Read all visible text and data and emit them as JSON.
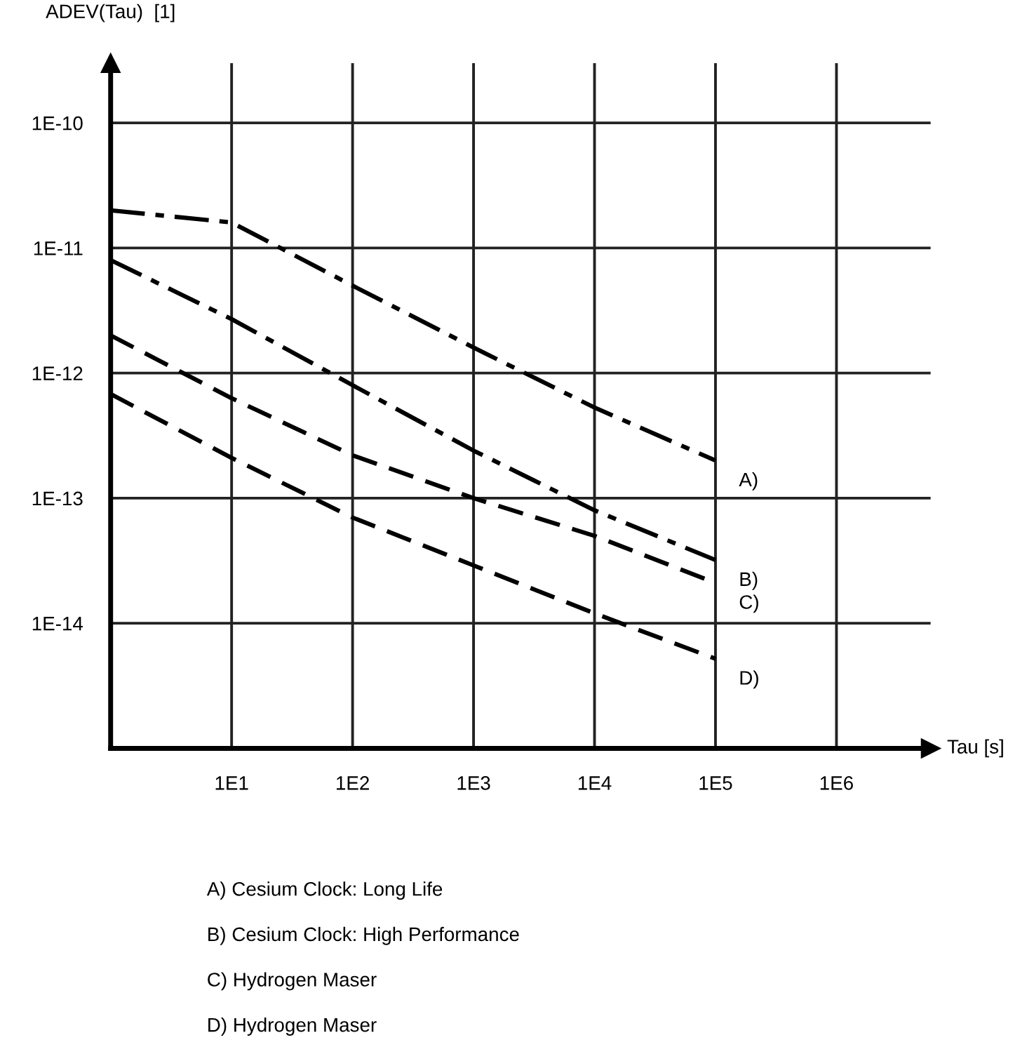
{
  "chart_data": {
    "type": "line",
    "xlabel": "Tau [s]",
    "ylabel": "ADEV(Tau)  [1]",
    "log": "xy",
    "grid": true,
    "legend": "right",
    "marker": "none",
    "xlim": [
      1,
      6000000
    ],
    "xticks": [
      {
        "value": 10,
        "label": "1E1"
      },
      {
        "value": 100,
        "label": "1E2"
      },
      {
        "value": 1000,
        "label": "1E3"
      },
      {
        "value": 10000,
        "label": "1E4"
      },
      {
        "value": 100000,
        "label": "1E5"
      },
      {
        "value": 1000000,
        "label": "1E6"
      }
    ],
    "ylim": [
      1e-15,
      3e-10
    ],
    "yticks": [
      {
        "value": 1e-14,
        "label": "1E-14"
      },
      {
        "value": 1e-13,
        "label": "1E-13"
      },
      {
        "value": 1e-12,
        "label": "1E-12"
      },
      {
        "value": 1e-11,
        "label": "1E-11"
      },
      {
        "value": 1e-10,
        "label": "1E-10"
      }
    ],
    "x": [
      1,
      10,
      100,
      1000,
      10000,
      100000
    ],
    "series": [
      {
        "name": "A)",
        "color": "#000000",
        "line_style": "dashdot",
        "values": [
          2e-11,
          1.6e-11,
          5e-12,
          1.6e-12,
          5.3e-13,
          2e-13
        ]
      },
      {
        "name": "B)",
        "color": "#000000",
        "line_style": "dashdot",
        "values": [
          8e-12,
          2.7e-12,
          8e-13,
          2.4e-13,
          8e-14,
          3.2e-14
        ]
      },
      {
        "name": "C)",
        "color": "#000000",
        "line_style": "dashed",
        "values": [
          2e-12,
          6.3e-13,
          2.2e-13,
          1e-13,
          5e-14,
          2.1e-14
        ]
      },
      {
        "name": "D)",
        "color": "#000000",
        "line_style": "dashed",
        "values": [
          6.8e-13,
          2.1e-13,
          7e-14,
          2.9e-14,
          1.2e-14,
          5.2e-15
        ]
      }
    ],
    "annotations": [
      "A) Cesium Clock: Long Life",
      "B) Cesium Clock: High Performance",
      "C) Hydrogen Maser",
      "D) Hydrogen Maser"
    ]
  }
}
